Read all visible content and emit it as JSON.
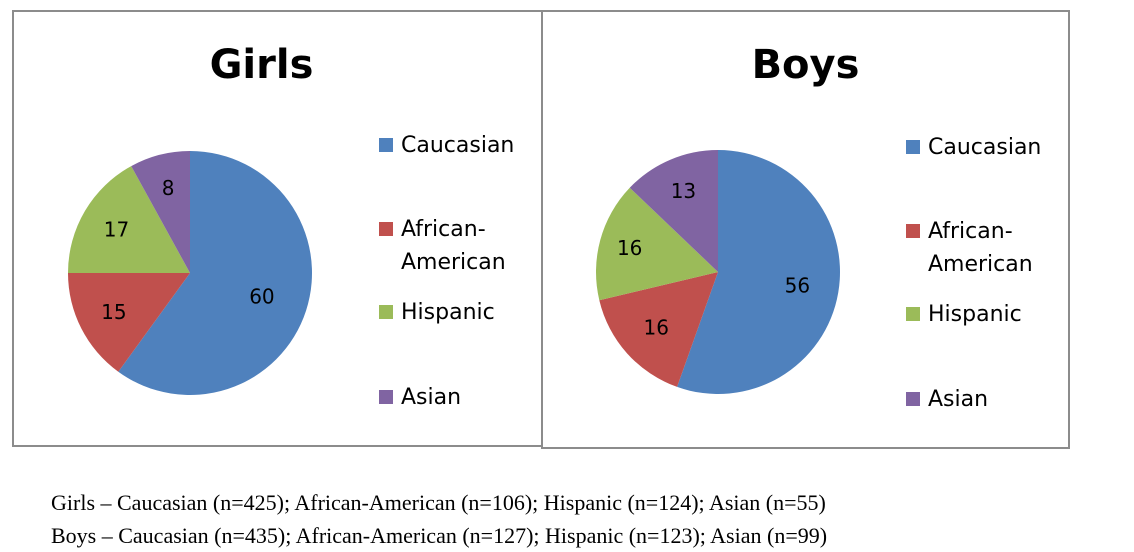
{
  "chart_data": [
    {
      "type": "pie",
      "title": "Girls",
      "categories": [
        "Caucasian",
        "African-American",
        "Hispanic",
        "Asian"
      ],
      "values": [
        60,
        15,
        17,
        8
      ],
      "colors": [
        "#4f81bd",
        "#c0504d",
        "#9bbb59",
        "#8064a2"
      ],
      "data_labels": [
        "60",
        "15",
        "17",
        "8"
      ],
      "legend": [
        "Caucasian",
        "African-American",
        "Hispanic",
        "Asian"
      ],
      "legend_position": "right",
      "start_angle_deg": 0,
      "direction": "clockwise"
    },
    {
      "type": "pie",
      "title": "Boys",
      "categories": [
        "Caucasian",
        "African-American",
        "Hispanic",
        "Asian"
      ],
      "values": [
        56,
        16,
        16,
        13
      ],
      "colors": [
        "#4f81bd",
        "#c0504d",
        "#9bbb59",
        "#8064a2"
      ],
      "data_labels": [
        "56",
        "16",
        "16",
        "13"
      ],
      "legend": [
        "Caucasian",
        "African-American",
        "Hispanic",
        "Asian"
      ],
      "legend_position": "right",
      "start_angle_deg": 0,
      "direction": "clockwise"
    }
  ],
  "notes": [
    "Girls – Caucasian (n=425); African-American (n=106); Hispanic (n=124); Asian (n=55)",
    "Boys – Caucasian (n=435); African-American (n=127); Hispanic (n=123); Asian (n=99)"
  ]
}
